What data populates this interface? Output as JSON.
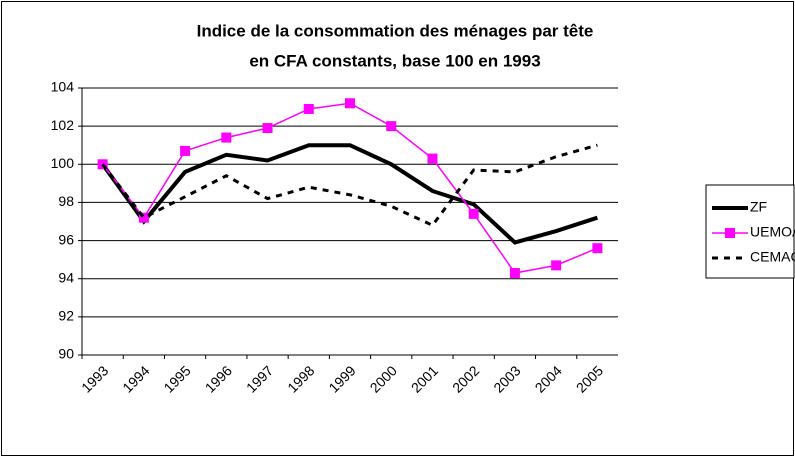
{
  "chart_data": {
    "type": "line",
    "title": [
      "Indice de la consommation des ménages par tête",
      "en CFA constants, base 100 en 1993"
    ],
    "categories": [
      "1993",
      "1994",
      "1995",
      "1996",
      "1997",
      "1998",
      "1999",
      "2000",
      "2001",
      "2002",
      "2003",
      "2004",
      "2005"
    ],
    "series": [
      {
        "name": "ZF",
        "color": "#000000",
        "style": "solid",
        "marker": "none",
        "values": [
          100,
          97.0,
          99.6,
          100.5,
          100.2,
          101.0,
          101.0,
          100.0,
          98.6,
          97.9,
          95.9,
          96.5,
          97.2
        ]
      },
      {
        "name": "UEMOA",
        "color": "#ff00ff",
        "style": "solid",
        "marker": "square",
        "values": [
          100,
          97.2,
          100.7,
          101.4,
          101.9,
          102.9,
          103.2,
          102.0,
          100.3,
          97.4,
          94.3,
          94.7,
          95.6
        ]
      },
      {
        "name": "CEMAC",
        "color": "#000000",
        "style": "dashed",
        "marker": "none",
        "values": [
          100,
          97.2,
          98.3,
          99.4,
          98.2,
          98.8,
          98.4,
          97.8,
          96.8,
          99.7,
          99.6,
          100.4,
          101.0
        ]
      }
    ],
    "ylim": [
      90,
      104
    ],
    "yticks": [
      90,
      92,
      94,
      96,
      98,
      100,
      102,
      104
    ],
    "grid": true,
    "legend": "right"
  }
}
